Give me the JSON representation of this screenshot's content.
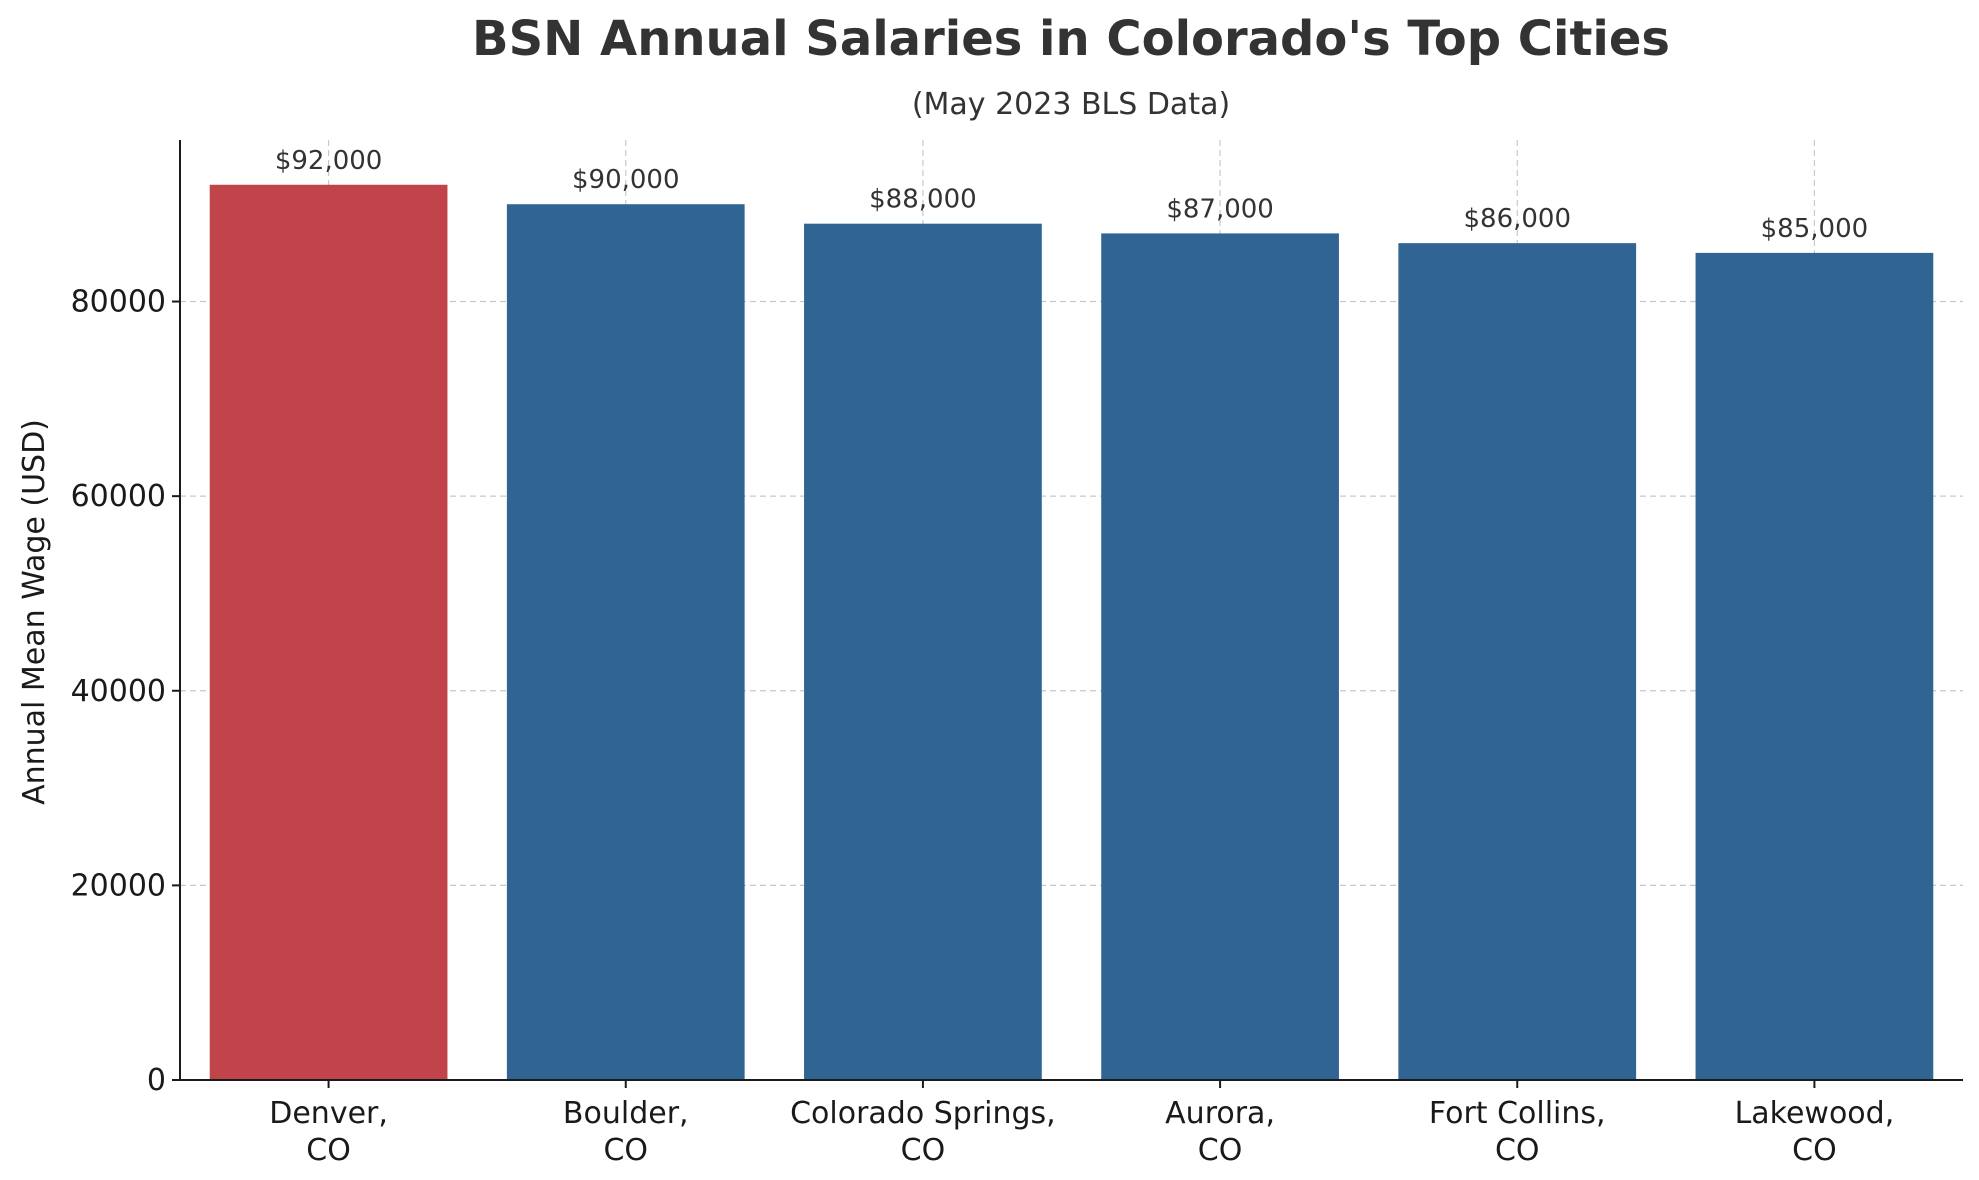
{
  "chart_data": {
    "type": "bar",
    "title": "BSN Annual Salaries in Colorado's Top Cities",
    "subtitle": "(May 2023 BLS Data)",
    "xlabel": "",
    "ylabel": "Annual Mean Wage (USD)",
    "categories": [
      [
        "Denver,",
        "CO"
      ],
      [
        "Boulder,",
        "CO"
      ],
      [
        "Colorado Springs,",
        "CO"
      ],
      [
        "Aurora,",
        "CO"
      ],
      [
        "Fort Collins,",
        "CO"
      ],
      [
        "Lakewood,",
        "CO"
      ]
    ],
    "values": [
      92000,
      90000,
      88000,
      87000,
      86000,
      85000
    ],
    "data_labels": [
      "$92,000",
      "$90,000",
      "$88,000",
      "$87,000",
      "$86,000",
      "$85,000"
    ],
    "bar_colors": [
      "#c0444a",
      "#2f6493",
      "#2f6493",
      "#2f6493",
      "#2f6493",
      "#2f6493"
    ],
    "yticks": [
      0,
      20000,
      40000,
      60000,
      80000
    ],
    "ytick_labels": [
      "0",
      "20000",
      "40000",
      "60000",
      "80000"
    ],
    "ylim": [
      0,
      96600
    ],
    "grid": true,
    "grid_style": "dashed",
    "legend": "none"
  }
}
